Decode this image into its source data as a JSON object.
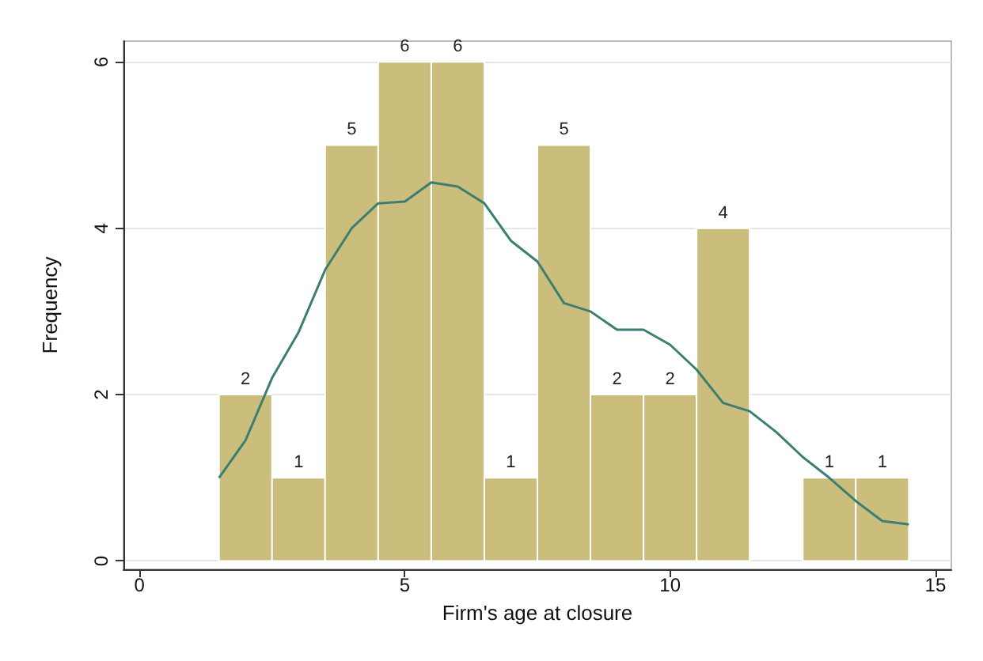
{
  "chart_data": {
    "type": "histogram",
    "xlabel": "Firm's age at closure",
    "ylabel": "Frequency",
    "bins": [
      1.5,
      2.5,
      3.5,
      4.5,
      5.5,
      6.5,
      7.5,
      8.5,
      9.5,
      10.5,
      11.5,
      12.5,
      13.5,
      14.5
    ],
    "values": [
      2,
      1,
      5,
      6,
      6,
      1,
      5,
      2,
      2,
      4,
      0,
      1,
      1
    ],
    "value_labels": [
      "2",
      "1",
      "5",
      "6",
      "6",
      "1",
      "5",
      "2",
      "2",
      "4",
      null,
      "1",
      "1"
    ],
    "color": "#cbbd7c",
    "xlim": [
      -0.3,
      15.3
    ],
    "xticks": [
      0,
      5,
      10,
      15
    ],
    "ylim": [
      -0.1,
      6.25
    ],
    "yticks": [
      0,
      2,
      4,
      6
    ],
    "grid": "y",
    "series": [
      {
        "type": "line",
        "color": "#3b7f73",
        "x": [
          1.5,
          2,
          2.5,
          3,
          3.5,
          4,
          4.5,
          5,
          5.5,
          6,
          6.5,
          7,
          7.5,
          8,
          8.5,
          9,
          9.5,
          10,
          10.5,
          11,
          11.5,
          12,
          12.5,
          13,
          13.5,
          14,
          14.5
        ],
        "values": [
          1.0,
          1.45,
          2.2,
          2.75,
          3.5,
          4.0,
          4.3,
          4.32,
          4.55,
          4.5,
          4.3,
          3.85,
          3.6,
          3.1,
          3.0,
          2.78,
          2.78,
          2.6,
          2.3,
          1.9,
          1.8,
          1.55,
          1.25,
          1.0,
          0.72,
          0.48,
          0.44
        ]
      }
    ]
  }
}
